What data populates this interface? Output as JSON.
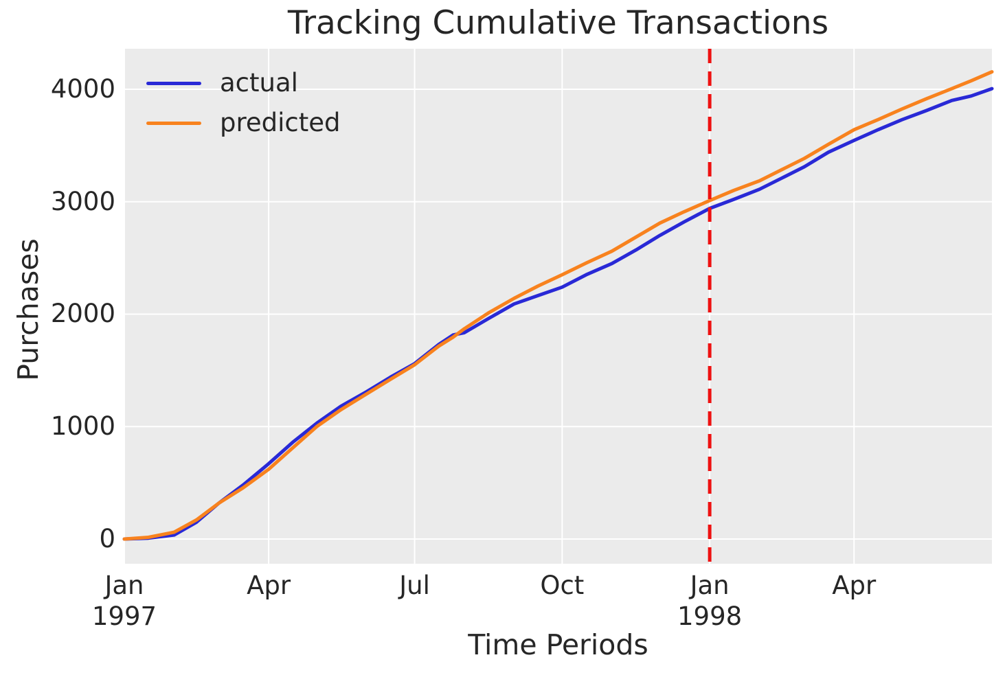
{
  "chart_data": {
    "type": "line",
    "title": "Tracking Cumulative Transactions",
    "xlabel": "Time Periods",
    "ylabel": "Purchases",
    "x_unit": "days since 1997-01-01",
    "xlim": [
      0,
      541
    ],
    "ylim": [
      -220,
      4360
    ],
    "grid": true,
    "legend_position": "upper left",
    "background_color": "#ebebeb",
    "grid_color": "#ffffff",
    "text_color": "#262626",
    "x_days": [
      0,
      15,
      31,
      45,
      59,
      74,
      90,
      105,
      120,
      135,
      151,
      166,
      181,
      196,
      205,
      212,
      227,
      243,
      258,
      273,
      288,
      304,
      319,
      334,
      349,
      365,
      380,
      396,
      410,
      424,
      439,
      455,
      470,
      485,
      500,
      516,
      528,
      541
    ],
    "series": [
      {
        "name": "actual",
        "color": "#2929d6",
        "values": [
          0,
          8,
          35,
          150,
          320,
          480,
          670,
          860,
          1030,
          1180,
          1310,
          1440,
          1560,
          1730,
          1815,
          1835,
          1960,
          2090,
          2165,
          2240,
          2350,
          2450,
          2570,
          2700,
          2820,
          2940,
          3020,
          3110,
          3210,
          3310,
          3440,
          3545,
          3640,
          3730,
          3810,
          3900,
          3940,
          4005
        ]
      },
      {
        "name": "predicted",
        "color": "#f8821e",
        "values": [
          0,
          15,
          60,
          170,
          320,
          455,
          620,
          810,
          1000,
          1150,
          1290,
          1420,
          1550,
          1715,
          1795,
          1870,
          2010,
          2140,
          2250,
          2350,
          2455,
          2560,
          2685,
          2810,
          2910,
          3010,
          3100,
          3185,
          3285,
          3385,
          3510,
          3640,
          3730,
          3825,
          3915,
          4005,
          4075,
          4155
        ]
      }
    ],
    "vline": {
      "x": 365,
      "date": "1998-01-01",
      "color": "#ee1111",
      "style": "dashed"
    },
    "xticks": [
      {
        "x": 0,
        "line1": "Jan",
        "line2": "1997"
      },
      {
        "x": 90,
        "line1": "Apr"
      },
      {
        "x": 181,
        "line1": "Jul"
      },
      {
        "x": 273,
        "line1": "Oct"
      },
      {
        "x": 365,
        "line1": "Jan",
        "line2": "1998"
      },
      {
        "x": 455,
        "line1": "Apr"
      }
    ],
    "yticks": [
      {
        "value": 0,
        "label": "0"
      },
      {
        "value": 1000,
        "label": "1000"
      },
      {
        "value": 2000,
        "label": "2000"
      },
      {
        "value": 3000,
        "label": "3000"
      },
      {
        "value": 4000,
        "label": "4000"
      }
    ]
  }
}
